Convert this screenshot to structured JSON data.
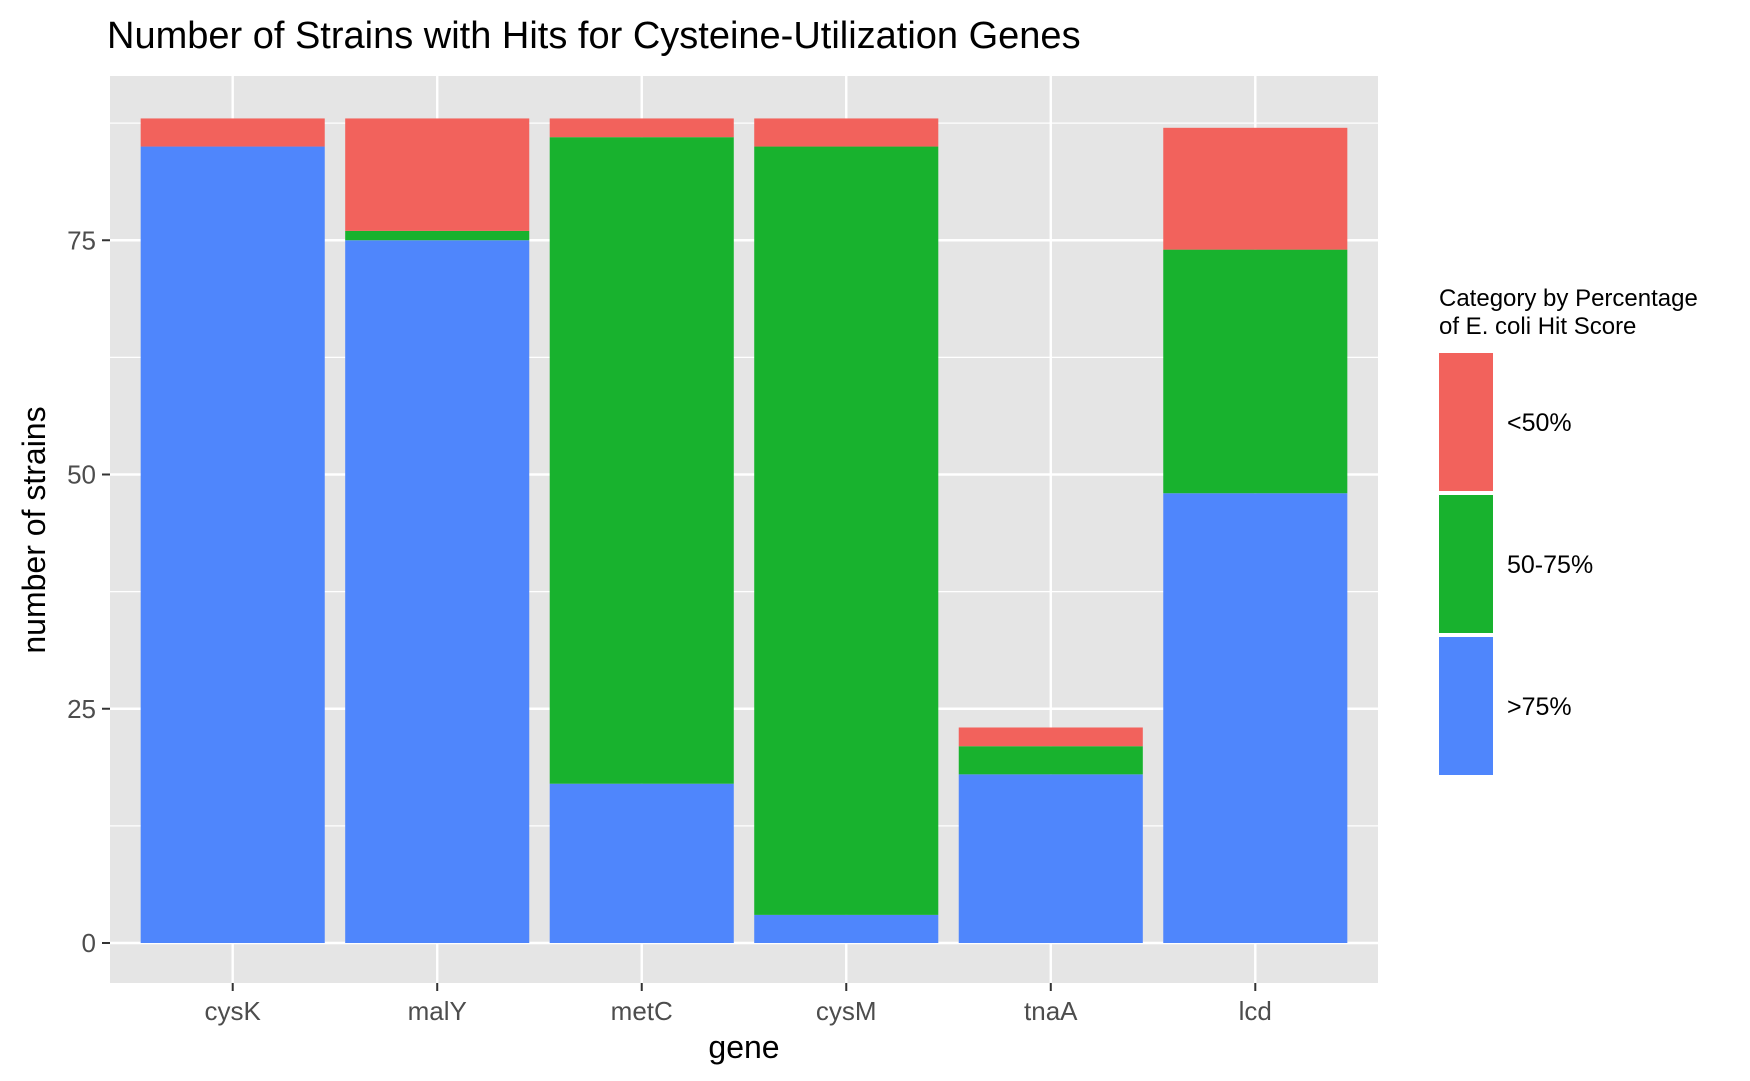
{
  "chart_data": {
    "type": "bar",
    "stacked": true,
    "title": "Number of Strains with Hits for Cysteine-Utilization Genes",
    "xlabel": "gene",
    "ylabel": "number of strains",
    "categories": [
      "cysK",
      "malY",
      "metC",
      "cysM",
      "tnaA",
      "lcd"
    ],
    "y_ticks": [
      0,
      25,
      50,
      75
    ],
    "ylim": [
      0,
      88
    ],
    "grid": true,
    "legend": {
      "title_lines": [
        "Category by Percentage",
        "of E. coli Hit Score"
      ],
      "placement": "right"
    },
    "series": [
      {
        "name": ">75%",
        "color": "#4f86fc",
        "values": [
          85,
          75,
          17,
          3,
          18,
          48
        ]
      },
      {
        "name": "50-75%",
        "color": "#18b22e",
        "values": [
          0,
          1,
          69,
          82,
          3,
          26
        ]
      },
      {
        "name": "<50%",
        "color": "#f2625c",
        "values": [
          3,
          12,
          2,
          3,
          2,
          13
        ]
      }
    ],
    "panel_background": "#e5e5e5",
    "gridline_color": "#ffffff"
  }
}
